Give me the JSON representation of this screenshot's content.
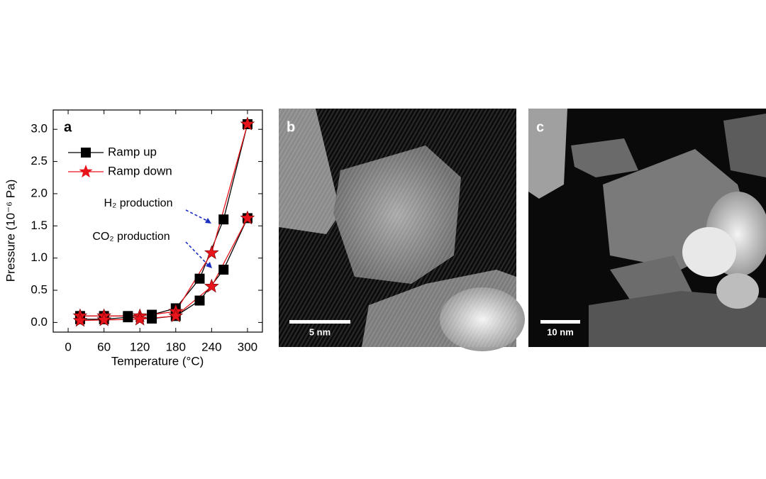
{
  "chart_data": {
    "type": "line",
    "panel_label": "a",
    "y_label": "Pressure (10⁻⁶ Pa)",
    "x_label": "Temperature (°C)",
    "xlim": [
      -25,
      325
    ],
    "xticks": [
      0,
      60,
      120,
      180,
      240,
      300
    ],
    "ylim": [
      -0.15,
      3.3
    ],
    "yticks": [
      {
        "value": 0,
        "label": "0.0"
      },
      0.5,
      {
        "value": 1,
        "label": "1.0"
      },
      1.5,
      {
        "value": 2,
        "label": "2.0"
      },
      2.5,
      {
        "value": 3,
        "label": "3.0"
      }
    ],
    "annotations": [
      "H₂ production",
      "CO₂ production"
    ],
    "series": [
      {
        "name": "Ramp up",
        "color": "#000000",
        "marker": "square",
        "x": [
          20,
          60,
          100,
          140,
          180,
          220,
          260,
          300
        ],
        "curves": [
          {
            "values": [
              0.1,
              0.1,
              0.1,
              0.12,
              0.22,
              0.68,
              1.6,
              3.08
            ]
          },
          {
            "values": [
              0.05,
              0.05,
              0.08,
              0.06,
              0.1,
              0.34,
              0.82,
              1.62
            ]
          }
        ]
      },
      {
        "name": "Ramp down",
        "color": "#e8141b",
        "marker": "star",
        "x": [
          20,
          60,
          120,
          180,
          240,
          300
        ],
        "curves": [
          {
            "values": [
              0.1,
              0.1,
              0.1,
              0.17,
              1.08,
              3.08
            ]
          },
          {
            "values": [
              0.03,
              0.04,
              0.05,
              0.1,
              0.56,
              1.62
            ]
          }
        ]
      }
    ]
  },
  "images": [
    {
      "label": "b",
      "scale_bar": "5 nm"
    },
    {
      "label": "c",
      "scale_bar": "10 nm"
    }
  ]
}
